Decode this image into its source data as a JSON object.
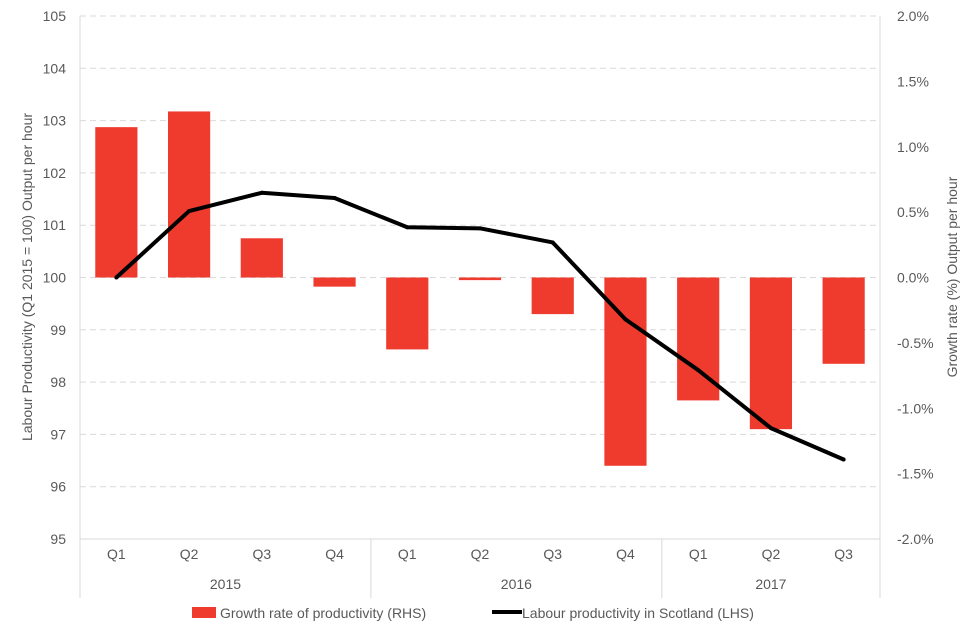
{
  "chart_data": {
    "type": "bar+line",
    "groups": [
      {
        "label": "2015",
        "quarters": [
          "Q1",
          "Q2",
          "Q3",
          "Q4"
        ]
      },
      {
        "label": "2016",
        "quarters": [
          "Q1",
          "Q2",
          "Q3",
          "Q4"
        ]
      },
      {
        "label": "2017",
        "quarters": [
          "Q1",
          "Q2",
          "Q3"
        ]
      }
    ],
    "categories": [
      "Q1 2015",
      "Q2 2015",
      "Q3 2015",
      "Q4 2015",
      "Q1 2016",
      "Q2 2016",
      "Q3 2016",
      "Q4 2016",
      "Q1 2017",
      "Q2 2017",
      "Q3 2017"
    ],
    "series": [
      {
        "name": "Growth rate of productivity (RHS)",
        "type": "bar",
        "axis": "right",
        "color": "#ee3b2e",
        "values": [
          1.15,
          1.27,
          0.3,
          -0.07,
          -0.55,
          -0.02,
          -0.28,
          -1.44,
          -0.94,
          -1.16,
          -0.66
        ]
      },
      {
        "name": "Labour productivity in Scotland (LHS)",
        "type": "line",
        "axis": "left",
        "color": "#000000",
        "values": [
          100.0,
          101.27,
          101.62,
          101.52,
          100.96,
          100.94,
          100.67,
          99.2,
          98.23,
          97.12,
          96.52
        ]
      }
    ],
    "left_axis": {
      "label": "Labour Productivity (Q1 2015 = 100) Output per hour",
      "min": 95,
      "max": 105,
      "step": 1,
      "ticks": [
        "95",
        "96",
        "97",
        "98",
        "99",
        "100",
        "101",
        "102",
        "103",
        "104",
        "105"
      ]
    },
    "right_axis": {
      "label": "Growth rate (%) Output per hour",
      "min": -2.0,
      "max": 2.0,
      "step": 0.5,
      "ticks": [
        "-2.0%",
        "-1.5%",
        "-1.0%",
        "-0.5%",
        "0.0%",
        "0.5%",
        "1.0%",
        "1.5%",
        "2.0%"
      ]
    },
    "grid": true,
    "legend_position": "bottom"
  }
}
